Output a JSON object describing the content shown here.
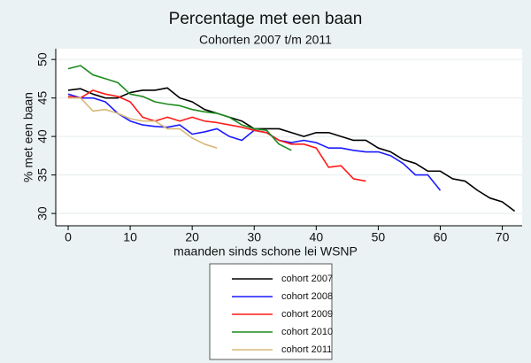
{
  "chart_data": {
    "type": "line",
    "title": "Percentage met een baan",
    "subtitle": "Cohorten 2007 t/m 2011",
    "x_label": "maanden sinds schone lei WSNP",
    "y_label": "% met een baan",
    "x": [
      0,
      2,
      4,
      6,
      8,
      10,
      12,
      14,
      16,
      18,
      20,
      22,
      24,
      26,
      28,
      30,
      32,
      34,
      36,
      38,
      40,
      42,
      44,
      46,
      48,
      50,
      52,
      54,
      56,
      58,
      60,
      62,
      64,
      66,
      68,
      70,
      72
    ],
    "series": [
      {
        "name": "cohort 2007",
        "color": "#000000",
        "values": [
          46,
          46.2,
          45.5,
          45,
          45,
          45.7,
          46,
          46,
          46.3,
          45,
          44.5,
          43.5,
          43,
          42.5,
          42,
          41,
          41,
          41,
          40.5,
          40,
          40.5,
          40.5,
          40,
          39.5,
          39.5,
          38.5,
          38,
          37,
          36.5,
          35.5,
          35.5,
          34.5,
          34.2,
          33,
          32,
          31.5,
          30.3
        ]
      },
      {
        "name": "cohort 2008",
        "color": "#1a1aff",
        "values": [
          45.5,
          45,
          45,
          44.5,
          43,
          42,
          41.5,
          41.3,
          41.2,
          41.5,
          40.3,
          40.6,
          41,
          40,
          39.5,
          40.8,
          40.5,
          39.5,
          39.2,
          39.5,
          39.2,
          38.5,
          38.5,
          38.2,
          38,
          38,
          37.5,
          36.5,
          35,
          35,
          33,
          null,
          null,
          null,
          null,
          null,
          null
        ]
      },
      {
        "name": "cohort 2009",
        "color": "#ff1a1a",
        "values": [
          45.2,
          45,
          46,
          45.5,
          45.2,
          44.5,
          42.5,
          42,
          42.5,
          42,
          42.5,
          42,
          41.8,
          41.5,
          41.2,
          40.8,
          40.5,
          39.5,
          39,
          39,
          38.5,
          36,
          36.2,
          34.5,
          34.2,
          null,
          null,
          null,
          null,
          null,
          null,
          null,
          null,
          null,
          null,
          null,
          null
        ]
      },
      {
        "name": "cohort 2010",
        "color": "#1e8a1e",
        "values": [
          48.8,
          49.2,
          48,
          47.5,
          47,
          45.5,
          45.2,
          44.5,
          44.2,
          44,
          43.5,
          43.2,
          43,
          42.5,
          41.5,
          41,
          40.8,
          39,
          38.2,
          null,
          null,
          null,
          null,
          null,
          null,
          null,
          null,
          null,
          null,
          null,
          null,
          null,
          null,
          null,
          null,
          null,
          null
        ]
      },
      {
        "name": "cohort 2011",
        "color": "#d8b878",
        "values": [
          45,
          45,
          43.3,
          43.5,
          43,
          42.3,
          42,
          42,
          41,
          41,
          39.8,
          39,
          38.5,
          null,
          null,
          null,
          null,
          null,
          null,
          null,
          null,
          null,
          null,
          null,
          null,
          null,
          null,
          null,
          null,
          null,
          null,
          null,
          null,
          null,
          null,
          null,
          null
        ]
      }
    ],
    "xlim": [
      -2,
      73.2
    ],
    "xticks": [
      0,
      10,
      20,
      30,
      40,
      50,
      60,
      70
    ],
    "ylim": [
      28.4,
      51.4
    ],
    "yticks": [
      30,
      35,
      40,
      45,
      50
    ],
    "grid": true,
    "legend": "bottom"
  }
}
